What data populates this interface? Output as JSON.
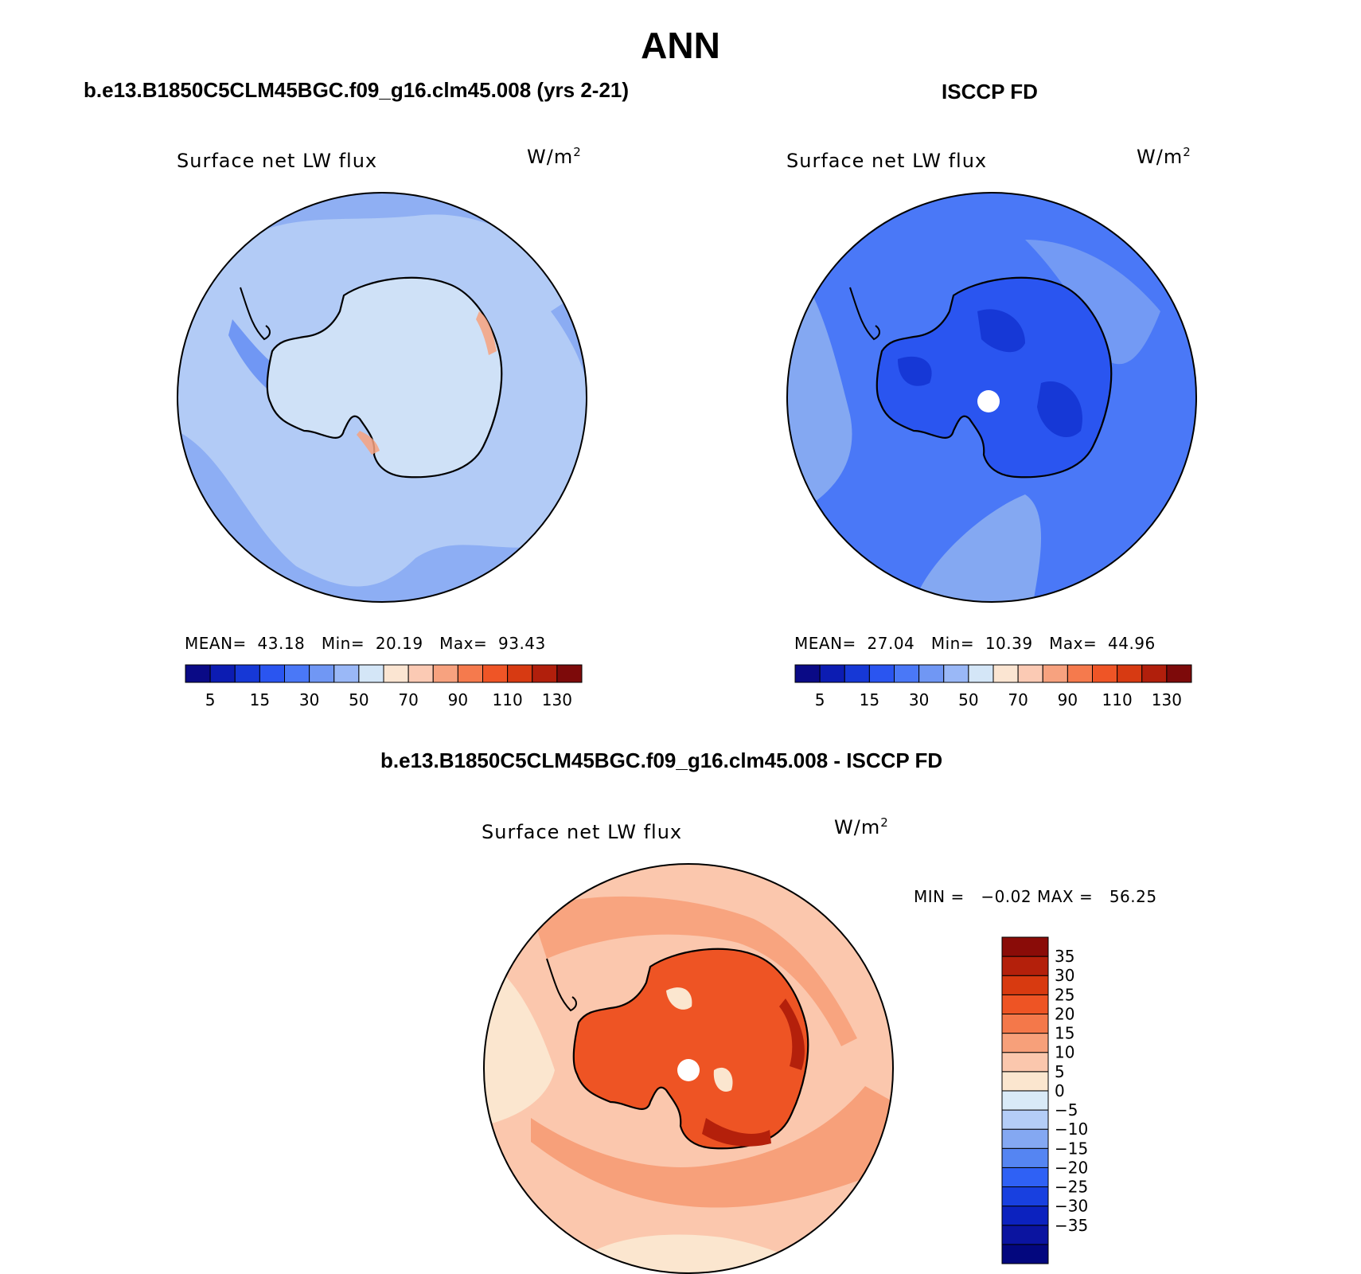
{
  "figure": {
    "season": "ANN",
    "panels": [
      {
        "case_title": "b.e13.B1850C5CLM45BGC.f09_g16.clm45.008 (yrs 2-21)",
        "variable": "Surface net LW flux",
        "units_base": "W/m",
        "units_exp": "2",
        "stats": {
          "mean_label": "MEAN=",
          "mean": "43.18",
          "min_label": "Min=",
          "min": "20.19",
          "max_label": "Max=",
          "max": "93.43"
        }
      },
      {
        "case_title": "ISCCP FD",
        "variable": "Surface net LW flux",
        "units_base": "W/m",
        "units_exp": "2",
        "stats": {
          "mean_label": "MEAN=",
          "mean": "27.04",
          "min_label": "Min=",
          "min": "10.39",
          "max_label": "Max=",
          "max": "44.96"
        }
      },
      {
        "case_title": "b.e13.B1850C5CLM45BGC.f09_g16.clm45.008 - ISCCP FD",
        "variable": "Surface net LW flux",
        "units_base": "W/m",
        "units_exp": "2",
        "stats": {
          "min_label": "MIN =",
          "min": "−0.02",
          "max_label": "MAX =",
          "max": "56.25"
        }
      }
    ]
  },
  "colorbar_main": {
    "colors": [
      "#0a0a86",
      "#0c1cb2",
      "#1638d6",
      "#2a55f0",
      "#4a78f7",
      "#7097f4",
      "#9ab8f7",
      "#d4e6f7",
      "#fbe5d2",
      "#fbcab4",
      "#f7a27f",
      "#f57a4d",
      "#ef5526",
      "#d73a12",
      "#b11f0c",
      "#7d0a0a"
    ],
    "labels": [
      "5",
      "15",
      "30",
      "50",
      "70",
      "90",
      "110",
      "130"
    ]
  },
  "colorbar_diff": {
    "colors": [
      "#03077e",
      "#0b14a0",
      "#0c22bf",
      "#1840e0",
      "#2f61f5",
      "#5585f2",
      "#84a8f2",
      "#b4cdf7",
      "#d9eaf7",
      "#fbe6cf",
      "#fbc7ad",
      "#f7a07a",
      "#f4784a",
      "#ee5424",
      "#d83a10",
      "#b4200b",
      "#8a0c08"
    ],
    "labels": [
      "35",
      "30",
      "25",
      "20",
      "15",
      "10",
      "5",
      "0",
      "−5",
      "−10",
      "−15",
      "−20",
      "−25",
      "−30",
      "−35"
    ]
  },
  "map_colors": {
    "p1_base": "#b2cbf6",
    "p1_ring": "#8bacf3",
    "p1_land": "#cfe1f7",
    "p1_blob": "#7097f4",
    "p1_warm": "#f7a27f",
    "p2_base": "#4a78f7",
    "p2_ring": "#84a8f2",
    "p2_land": "#2a55f0",
    "p2_deep": "#1638d6",
    "p3_base": "#fbc7ad",
    "p3_light": "#fbe6cf",
    "p3_ring": "#f7a07a",
    "p3_land": "#ee5424",
    "p3_deep": "#b4200b",
    "outline": "#000000",
    "pole": "#ffffff"
  }
}
